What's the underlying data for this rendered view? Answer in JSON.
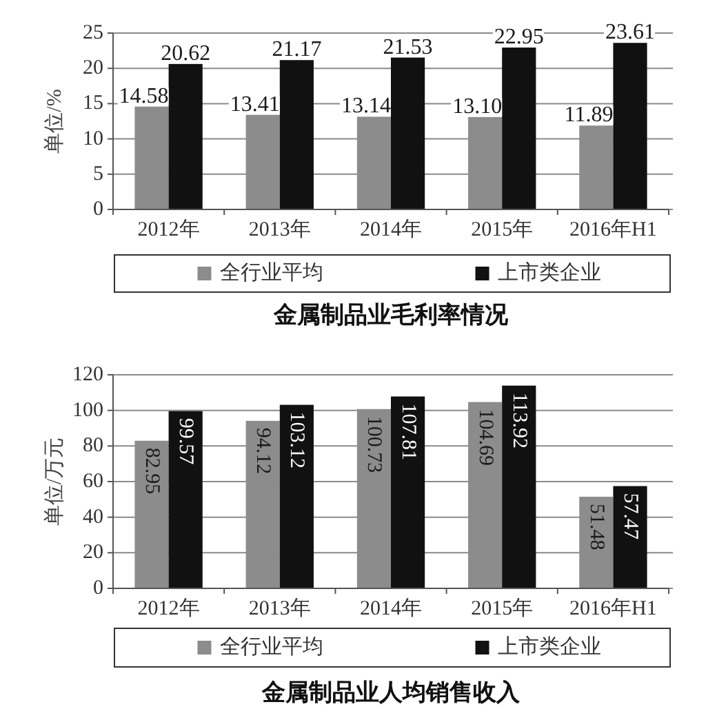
{
  "chart_data": [
    {
      "type": "bar",
      "title": "金属制品业毛利率情况",
      "ylabel": "单位/%",
      "categories": [
        "2012年",
        "2013年",
        "2014年",
        "2015年",
        "2016年H1"
      ],
      "series": [
        {
          "name": "全行业平均",
          "color": "#8c8c8c",
          "values": [
            14.58,
            13.41,
            13.14,
            13.1,
            11.89
          ],
          "value_labels": [
            "14.58",
            "13.41",
            "13.14",
            "13.10",
            "11.89"
          ]
        },
        {
          "name": "上市类企业",
          "color": "#111111",
          "values": [
            20.62,
            21.17,
            21.53,
            22.95,
            23.61
          ],
          "value_labels": [
            "20.62",
            "21.17",
            "21.53",
            "22.95",
            "23.61"
          ]
        }
      ],
      "ylim": [
        0,
        25
      ],
      "yticks": [
        0,
        5,
        10,
        15,
        20,
        25
      ],
      "grid": "y",
      "legend": "bottom"
    },
    {
      "type": "bar",
      "title": "金属制品业人均销售收入",
      "ylabel": "单位/万元",
      "categories": [
        "2012年",
        "2013年",
        "2014年",
        "2015年",
        "2016年H1"
      ],
      "series": [
        {
          "name": "全行业平均",
          "color": "#8c8c8c",
          "values": [
            82.95,
            94.12,
            100.73,
            104.69,
            51.48
          ],
          "value_labels": [
            "82.95",
            "94.12",
            "100.73",
            "104.69",
            "51.48"
          ]
        },
        {
          "name": "上市类企业",
          "color": "#111111",
          "values": [
            99.57,
            103.12,
            107.81,
            113.92,
            57.47
          ],
          "value_labels": [
            "99.57",
            "103.12",
            "107.81",
            "113.92",
            "57.47"
          ]
        }
      ],
      "ylim": [
        0,
        120
      ],
      "yticks": [
        0,
        20,
        40,
        60,
        80,
        100,
        120
      ],
      "grid": "y",
      "legend": "bottom"
    }
  ]
}
